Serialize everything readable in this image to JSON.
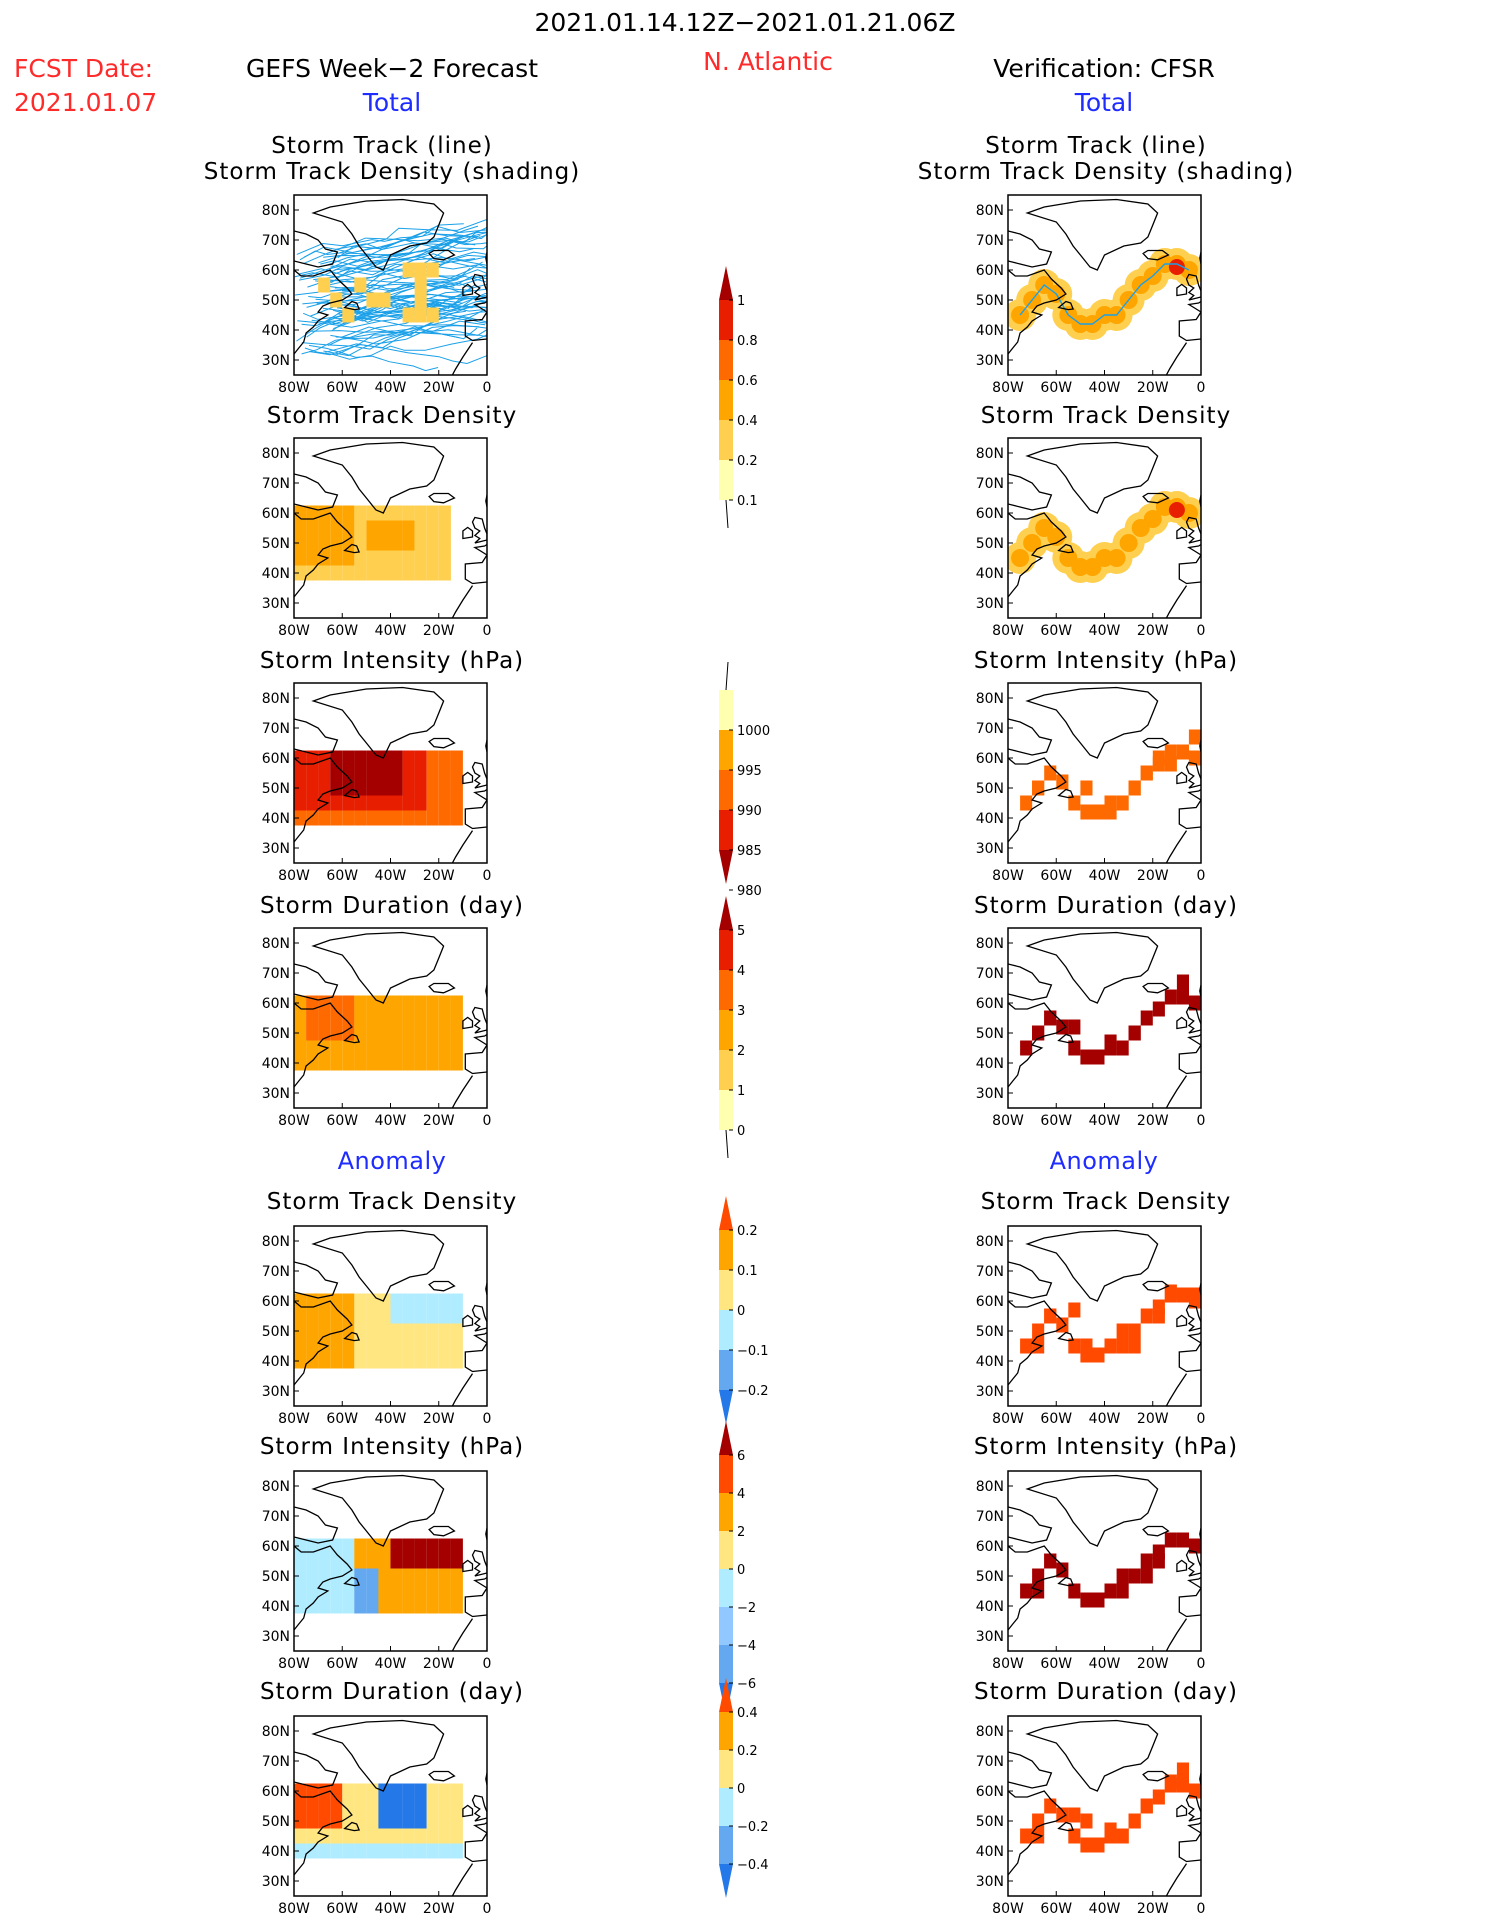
{
  "header": {
    "fcst_label": "FCST Date:",
    "fcst_date": "2021.01.07",
    "date_range": "2021.01.14.12Z−2021.01.21.06Z",
    "region": "N. Atlantic",
    "left_model": "GEFS Week−2 Forecast",
    "right_model": "Verification: CFSR"
  },
  "sections": {
    "total": "Total",
    "anomaly": "Anomaly"
  },
  "panel_titles": {
    "track_line": "Storm Track (line)",
    "track_density_shading": "Storm Track Density (shading)",
    "density": "Storm Track Density",
    "intensity": "Storm Intensity (hPa)",
    "duration": "Storm Duration (day)"
  },
  "axes": {
    "lat_ticks": [
      "80N",
      "70N",
      "60N",
      "50N",
      "40N",
      "30N"
    ],
    "lon_ticks": [
      "80W",
      "60W",
      "40W",
      "20W",
      "0"
    ]
  },
  "colorbars": [
    {
      "name": "density-total",
      "labels": [
        "1",
        "0.8",
        "0.6",
        "0.4",
        "0.2",
        "0.1"
      ],
      "colors": [
        "#a50000",
        "#e81e00",
        "#ff6a00",
        "#ffa500",
        "#ffd050",
        "#ffffb0"
      ]
    },
    {
      "name": "intensity-total",
      "labels": [
        "1000",
        "995",
        "990",
        "985",
        "980"
      ],
      "colors": [
        "#ffffb0",
        "#ffa500",
        "#ff6a00",
        "#e81e00",
        "#a50000"
      ]
    },
    {
      "name": "duration-total",
      "labels": [
        "5",
        "4",
        "3",
        "2",
        "1",
        "0"
      ],
      "colors": [
        "#a50000",
        "#e81e00",
        "#ff6a00",
        "#ffa500",
        "#ffd050",
        "#ffffb0"
      ]
    },
    {
      "name": "density-anom",
      "labels": [
        "0.2",
        "0.1",
        "0",
        "−0.1",
        "−0.2"
      ],
      "colors": [
        "#ff4a00",
        "#ffa500",
        "#ffe680",
        "#b0ecff",
        "#64a8f0",
        "#2478e8"
      ]
    },
    {
      "name": "intensity-anom",
      "labels": [
        "6",
        "4",
        "2",
        "0",
        "−2",
        "−4",
        "−6"
      ],
      "colors": [
        "#a50000",
        "#ff4a00",
        "#ffa500",
        "#ffe680",
        "#b0ecff",
        "#90c8ff",
        "#64a8f0",
        "#2478e8"
      ]
    },
    {
      "name": "duration-anom",
      "labels": [
        "0.4",
        "0.2",
        "0",
        "−0.2",
        "−0.4"
      ],
      "colors": [
        "#ff4a00",
        "#ffa500",
        "#ffe680",
        "#b0ecff",
        "#64a8f0",
        "#2478e8"
      ]
    }
  ],
  "chart_data": {
    "type": "heatmap",
    "region": "N. Atlantic",
    "xlim": [
      "80W",
      "0"
    ],
    "ylim": [
      "30N",
      "80N"
    ],
    "panels": [
      "Storm Track (line) / Storm Track Density (shading) — Total",
      "Storm Track Density — Total",
      "Storm Intensity (hPa) — Total",
      "Storm Duration (day) — Total",
      "Storm Track Density — Anomaly",
      "Storm Intensity (hPa) — Anomaly",
      "Storm Duration (day) — Anomaly"
    ]
  }
}
